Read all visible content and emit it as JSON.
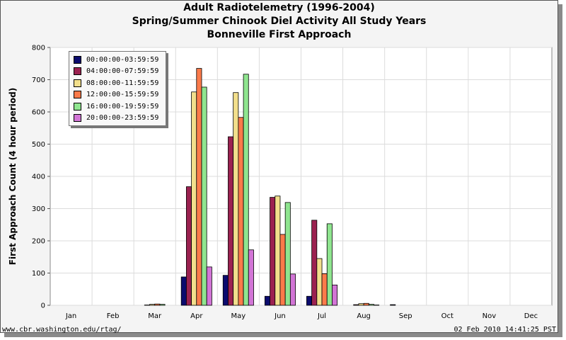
{
  "chart_data": {
    "type": "bar",
    "title": "Adult Radiotelemetry (1996-2004)",
    "subtitle": "Spring/Summer Chinook Diel Activity All Study Years",
    "subtitle2": "Bonneville First Approach",
    "xlabel": "",
    "ylabel": "First Approach Count (4 hour period)",
    "ylim": [
      0,
      800
    ],
    "yticks": [
      0,
      100,
      200,
      300,
      400,
      500,
      600,
      700,
      800
    ],
    "grid": true,
    "legend_position": "top-left",
    "categories": [
      "Jan",
      "Feb",
      "Mar",
      "Apr",
      "May",
      "Jun",
      "Jul",
      "Aug",
      "Sep",
      "Oct",
      "Nov",
      "Dec"
    ],
    "series": [
      {
        "name": "00:00:00-03:59:59",
        "color": "#0b0b6e",
        "values": [
          0,
          0,
          0,
          88,
          93,
          28,
          28,
          0,
          2,
          0,
          0,
          0
        ]
      },
      {
        "name": "04:00:00-07:59:59",
        "color": "#9b2150",
        "values": [
          0,
          0,
          1,
          368,
          523,
          335,
          264,
          2,
          0,
          0,
          0,
          0
        ]
      },
      {
        "name": "08:00:00-11:59:59",
        "color": "#f2df8c",
        "values": [
          0,
          0,
          3,
          662,
          660,
          339,
          145,
          5,
          0,
          0,
          0,
          0
        ]
      },
      {
        "name": "12:00:00-15:59:59",
        "color": "#fb7a4a",
        "values": [
          0,
          0,
          4,
          735,
          583,
          220,
          98,
          6,
          0,
          0,
          0,
          0
        ]
      },
      {
        "name": "16:00:00-19:59:59",
        "color": "#8fe58f",
        "values": [
          0,
          0,
          3,
          677,
          717,
          319,
          253,
          3,
          0,
          0,
          0,
          0
        ]
      },
      {
        "name": "20:00:00-23:59:59",
        "color": "#d275d6",
        "values": [
          0,
          0,
          0,
          119,
          172,
          97,
          63,
          1,
          0,
          0,
          0,
          0
        ]
      }
    ]
  },
  "footer": {
    "url": "www.cbr.washington.edu/rtag/",
    "timestamp": "02 Feb 2010 14:41:25 PST"
  }
}
